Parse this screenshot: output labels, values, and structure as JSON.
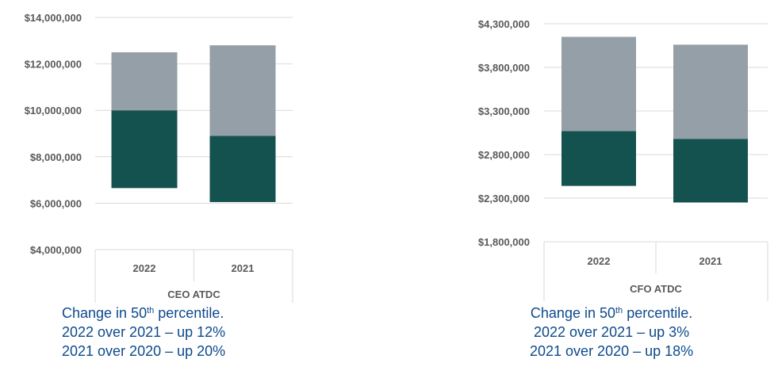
{
  "colors": {
    "upper": "#959fa7",
    "lower": "#14524f",
    "grid": "#d9d9d9",
    "axis_text": "#595959",
    "caption": "#0d4a8c"
  },
  "chart_data": [
    {
      "type": "bar",
      "stacked": "floating",
      "xlabel": "CEO ATDC",
      "categories": [
        "2022",
        "2021"
      ],
      "series": [
        {
          "values": [
            [
              6650000,
              10000000
            ],
            [
              6050000,
              8900000
            ]
          ]
        },
        {
          "values": [
            [
              10000000,
              12500000
            ],
            [
              8900000,
              12800000
            ]
          ]
        }
      ],
      "ylim": [
        4000000,
        14000000
      ],
      "yticks": [
        4000000,
        6000000,
        8000000,
        10000000,
        12000000,
        14000000
      ],
      "ytick_labels": [
        "$4,000,000",
        "$6,000,000",
        "$8,000,000",
        "$10,000,000",
        "$12,000,000",
        "$14,000,000"
      ],
      "grid": true
    },
    {
      "type": "bar",
      "stacked": "floating",
      "xlabel": "CFO ATDC",
      "categories": [
        "2022",
        "2021"
      ],
      "series": [
        {
          "values": [
            [
              2440000,
              3070000
            ],
            [
              2250000,
              2980000
            ]
          ]
        },
        {
          "values": [
            [
              3070000,
              4150000
            ],
            [
              2980000,
              4060000
            ]
          ]
        }
      ],
      "ylim": [
        1800000,
        4300000
      ],
      "yticks": [
        1800000,
        2300000,
        2800000,
        3300000,
        3800000,
        4300000
      ],
      "ytick_labels": [
        "$1,800,000",
        "$2,300,000",
        "$2,800,000",
        "$3,300,000",
        "$3,800,000",
        "$4,300,000"
      ],
      "grid": true
    }
  ],
  "captions": {
    "left": {
      "line1_prefix": "Change in 50",
      "line1_sup": "th",
      "line1_suffix": " percentile.",
      "line2": "2022 over 2021 – up 12%",
      "line3": "2021 over 2020 – up 20%"
    },
    "right": {
      "line1_prefix": "Change in 50",
      "line1_sup": "th",
      "line1_suffix": " percentile.",
      "line2": "2022 over 2021 – up 3%",
      "line3": "2021 over 2020 – up 18%"
    }
  }
}
